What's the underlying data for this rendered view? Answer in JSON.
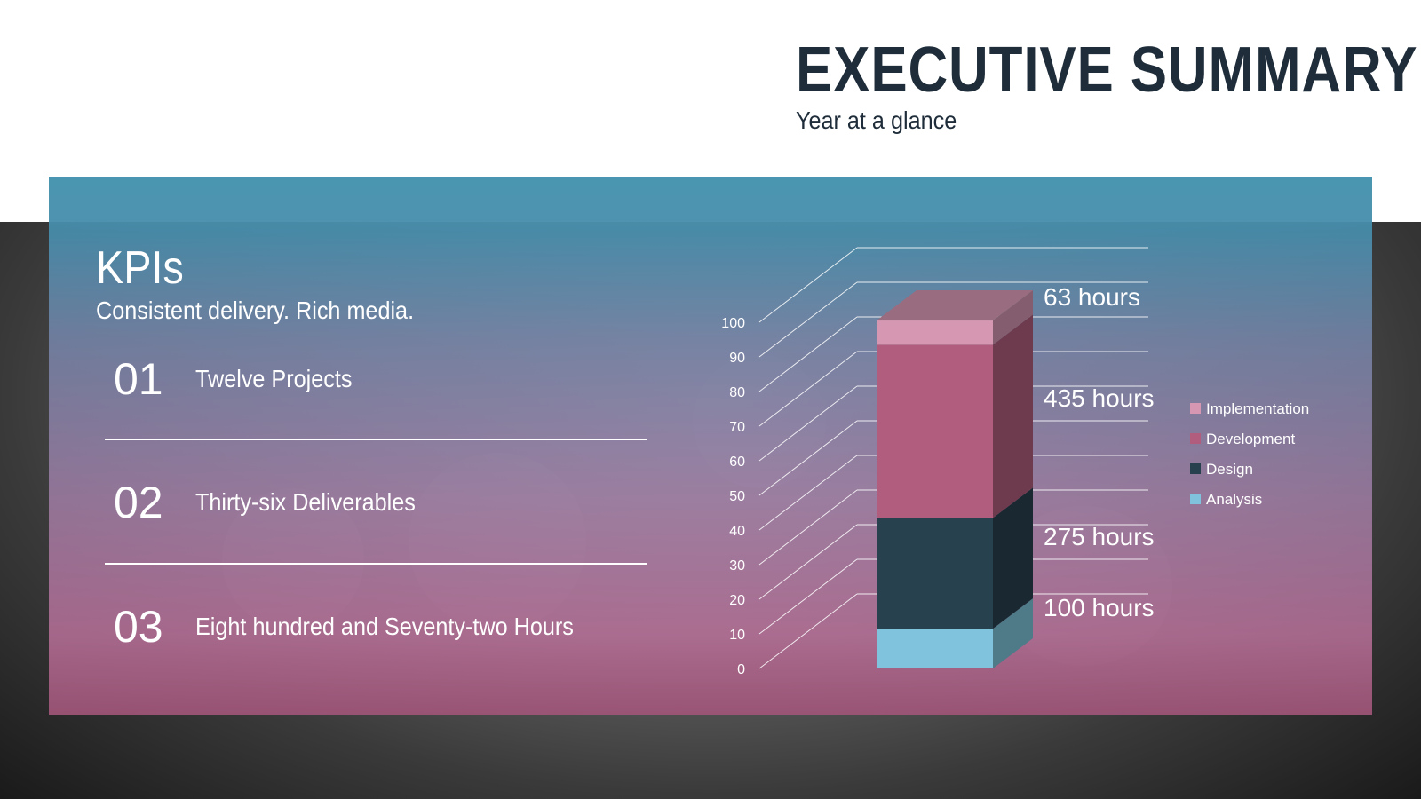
{
  "header": {
    "title": "EXECUTIVE SUMMARY",
    "subtitle": "Year at a glance"
  },
  "kpis": {
    "heading": "KPIs",
    "subheading": "Consistent delivery. Rich media.",
    "items": [
      {
        "number": "01",
        "label": "Twelve Projects"
      },
      {
        "number": "02",
        "label": "Thirty-six Deliverables"
      },
      {
        "number": "03",
        "label": "Eight hundred and Seventy-two Hours"
      }
    ]
  },
  "colors": {
    "title": "#1f2d3a",
    "analysis": "#7fc4dc",
    "design": "#28414f",
    "development": "#b15e7e",
    "implementation": "#d597b1"
  },
  "chart_data": {
    "type": "bar",
    "style": "3d-stacked-column",
    "categories": [
      ""
    ],
    "series": [
      {
        "name": "Analysis",
        "values": [
          11.5
        ],
        "label": "100 hours"
      },
      {
        "name": "Design",
        "values": [
          32
        ],
        "label": "275 hours"
      },
      {
        "name": "Development",
        "values": [
          50
        ],
        "label": "435 hours"
      },
      {
        "name": "Implementation",
        "values": [
          7
        ],
        "label": "63 hours"
      }
    ],
    "legend_order": [
      "Implementation",
      "Development",
      "Design",
      "Analysis"
    ],
    "ylim": [
      0,
      100
    ],
    "yticks": [
      "0",
      "10",
      "20",
      "30",
      "40",
      "50",
      "60",
      "70",
      "80",
      "90",
      "100"
    ],
    "grid": true,
    "legend": "right",
    "title": "",
    "xlabel": "",
    "ylabel": ""
  }
}
